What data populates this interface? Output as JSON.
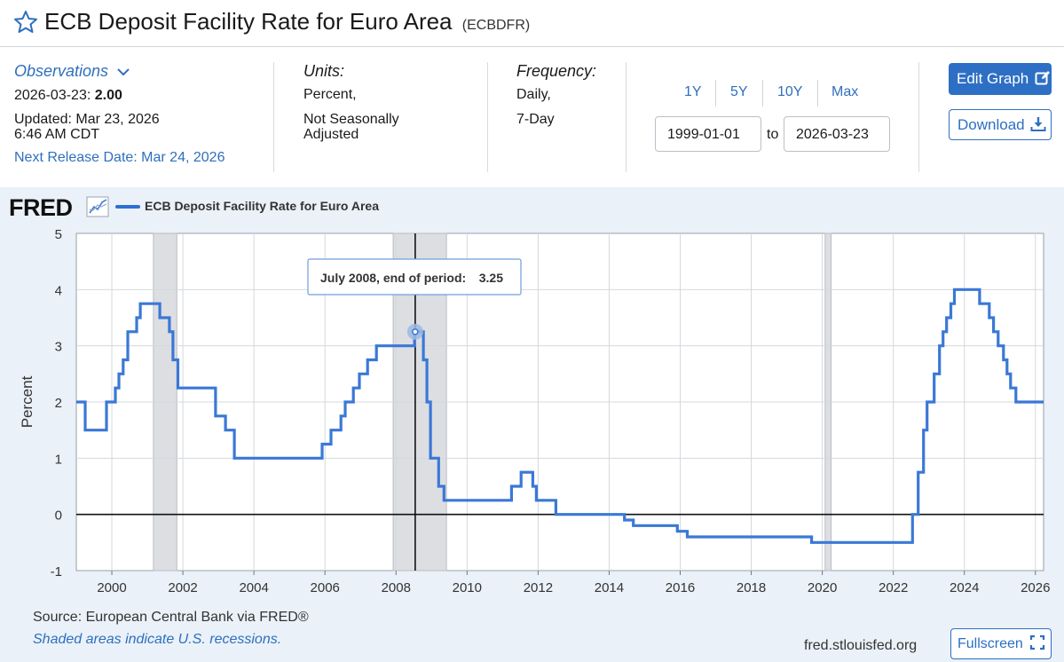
{
  "header": {
    "title": "ECB Deposit Facility Rate for Euro Area",
    "series_id": "(ECBDFR)"
  },
  "observations": {
    "link_label": "Observations",
    "date": "2026-03-23:",
    "value": "2.00",
    "updated_line1": "Updated: Mar 23, 2026",
    "updated_line2": "6:46 AM CDT",
    "next_release": "Next Release Date: Mar 24, 2026"
  },
  "units": {
    "label": "Units:",
    "line1": "Percent,",
    "line2": "Not Seasonally",
    "line3": "Adjusted"
  },
  "frequency": {
    "label": "Frequency:",
    "line1": "Daily,",
    "line2": "7-Day"
  },
  "range": {
    "buttons": [
      "1Y",
      "5Y",
      "10Y",
      "Max"
    ],
    "start": "1999-01-01",
    "to_label": "to",
    "end": "2026-03-23"
  },
  "actions": {
    "edit_graph": "Edit Graph",
    "download": "Download",
    "fullscreen": "Fullscreen"
  },
  "footer": {
    "source": "Source: European Central Bank via FRED®",
    "shading_note": "Shaded areas indicate U.S. recessions.",
    "url": "fred.stlouisfed.org"
  },
  "colors": {
    "series": "#3a78d6",
    "link": "#2f6fbd",
    "button": "#2d6fc4",
    "recession": "#dcdee2",
    "chart_bg": "#eaf1f8"
  },
  "chart_data": {
    "type": "line",
    "title": "",
    "legend": [
      "ECB Deposit Facility Rate for Euro Area"
    ],
    "logo": "FRED",
    "xlabel": "",
    "ylabel": "Percent",
    "xlim": [
      1999.0,
      2026.23
    ],
    "ylim": [
      -1,
      5
    ],
    "yticks": [
      "5",
      "4",
      "3",
      "2",
      "1",
      "0",
      "-1"
    ],
    "ytick_values": [
      5,
      4,
      3,
      2,
      1,
      0,
      -1
    ],
    "xticks": [
      "2000",
      "2002",
      "2004",
      "2006",
      "2008",
      "2010",
      "2012",
      "2014",
      "2016",
      "2018",
      "2020",
      "2022",
      "2024",
      "2026"
    ],
    "xtick_values": [
      2000,
      2002,
      2004,
      2006,
      2008,
      2010,
      2012,
      2014,
      2016,
      2018,
      2020,
      2022,
      2024,
      2026
    ],
    "recessions": [
      [
        2001.17,
        2001.83
      ],
      [
        2007.92,
        2009.42
      ],
      [
        2020.08,
        2020.25
      ]
    ],
    "tooltip": {
      "label": "July 2008, end of period:",
      "value": "3.25",
      "x": 2008.54,
      "y": 3.25
    },
    "series": [
      {
        "name": "ECB Deposit Facility Rate for Euro Area",
        "steps": [
          [
            1999.0,
            2.0
          ],
          [
            1999.25,
            1.5
          ],
          [
            1999.85,
            2.0
          ],
          [
            2000.1,
            2.25
          ],
          [
            2000.2,
            2.5
          ],
          [
            2000.32,
            2.75
          ],
          [
            2000.45,
            3.25
          ],
          [
            2000.7,
            3.5
          ],
          [
            2000.8,
            3.75
          ],
          [
            2001.35,
            3.5
          ],
          [
            2001.62,
            3.25
          ],
          [
            2001.72,
            2.75
          ],
          [
            2001.86,
            2.25
          ],
          [
            2002.92,
            1.75
          ],
          [
            2003.2,
            1.5
          ],
          [
            2003.45,
            1.0
          ],
          [
            2005.92,
            1.25
          ],
          [
            2006.17,
            1.5
          ],
          [
            2006.45,
            1.75
          ],
          [
            2006.57,
            2.0
          ],
          [
            2006.8,
            2.25
          ],
          [
            2006.97,
            2.5
          ],
          [
            2007.2,
            2.75
          ],
          [
            2007.45,
            3.0
          ],
          [
            2008.52,
            3.25
          ],
          [
            2008.77,
            2.75
          ],
          [
            2008.87,
            2.0
          ],
          [
            2008.97,
            1.0
          ],
          [
            2009.2,
            0.5
          ],
          [
            2009.35,
            0.25
          ],
          [
            2011.25,
            0.5
          ],
          [
            2011.52,
            0.75
          ],
          [
            2011.85,
            0.5
          ],
          [
            2011.95,
            0.25
          ],
          [
            2012.5,
            0.0
          ],
          [
            2014.43,
            -0.1
          ],
          [
            2014.68,
            -0.2
          ],
          [
            2015.92,
            -0.3
          ],
          [
            2016.2,
            -0.4
          ],
          [
            2019.7,
            -0.5
          ],
          [
            2022.54,
            0.0
          ],
          [
            2022.7,
            0.75
          ],
          [
            2022.85,
            1.5
          ],
          [
            2022.95,
            2.0
          ],
          [
            2023.15,
            2.5
          ],
          [
            2023.3,
            3.0
          ],
          [
            2023.4,
            3.25
          ],
          [
            2023.5,
            3.5
          ],
          [
            2023.62,
            3.75
          ],
          [
            2023.72,
            4.0
          ],
          [
            2024.43,
            3.75
          ],
          [
            2024.7,
            3.5
          ],
          [
            2024.82,
            3.25
          ],
          [
            2024.95,
            3.0
          ],
          [
            2025.1,
            2.75
          ],
          [
            2025.2,
            2.5
          ],
          [
            2025.3,
            2.25
          ],
          [
            2025.45,
            2.0
          ]
        ],
        "end_x": 2026.23
      }
    ]
  }
}
